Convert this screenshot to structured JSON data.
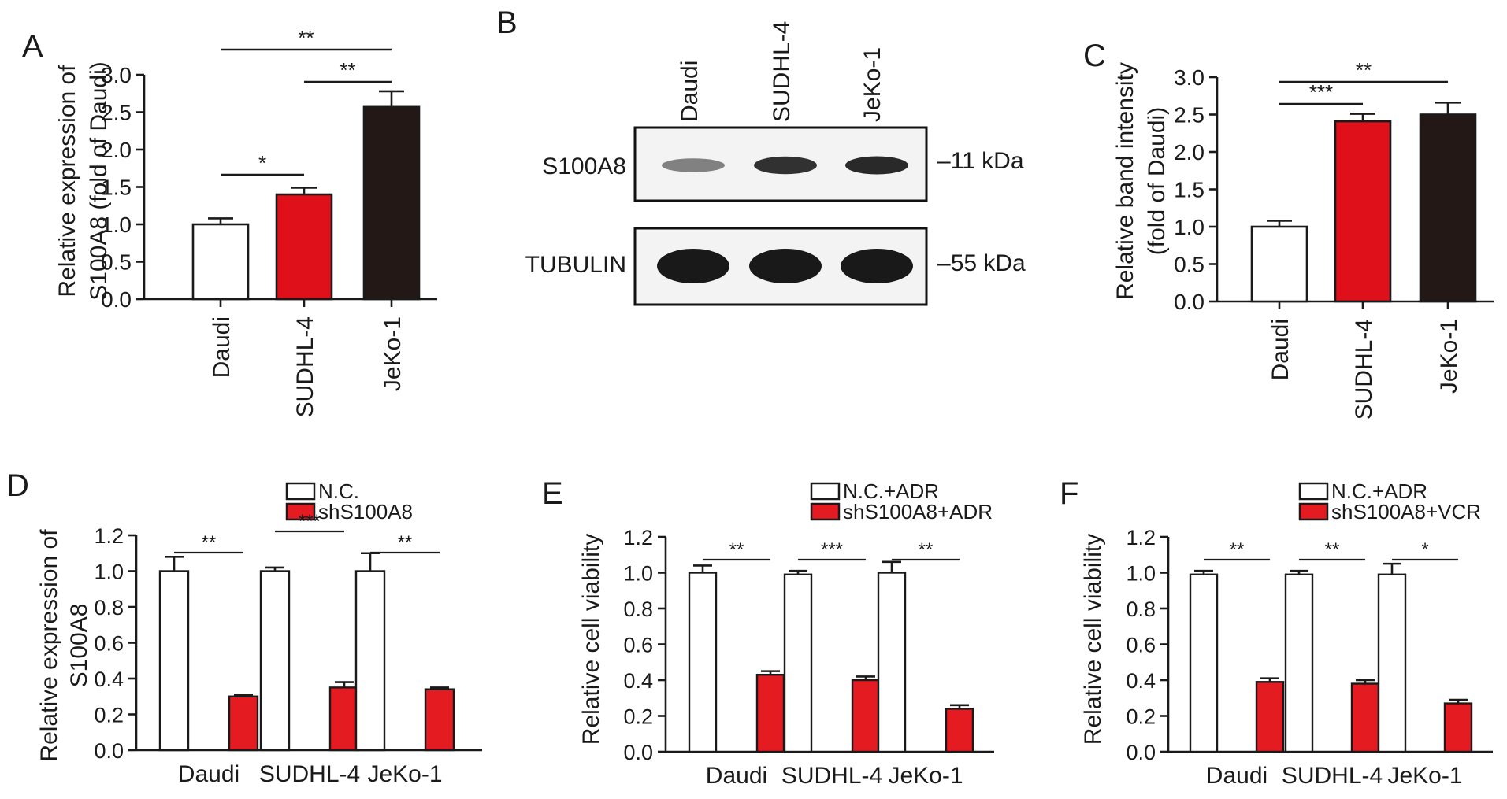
{
  "panel_letters": {
    "a": "A",
    "b": "B",
    "c": "C",
    "d": "D",
    "e": "E",
    "f": "F"
  },
  "colors": {
    "white": "#ffffff",
    "red": "#e0101a",
    "black": "#231815",
    "shred": "#e51b22",
    "axis": "#1a1a1a"
  },
  "blot": {
    "lanes": [
      "Daudi",
      "SUDHL-4",
      "JeKo-1"
    ],
    "row_labels": [
      "S100A8",
      "TUBULIN"
    ],
    "markers": [
      "11 kDa",
      "55 kDa"
    ],
    "band_intensity": [
      [
        0.35,
        0.85,
        0.9
      ],
      [
        1.0,
        1.0,
        1.0
      ]
    ]
  },
  "chart_data": [
    {
      "panel": "A",
      "type": "bar",
      "categories": [
        "Daudi",
        "SUDHL-4",
        "JeKo-1"
      ],
      "values": [
        1.0,
        1.4,
        2.57
      ],
      "errors": [
        0.08,
        0.09,
        0.21
      ],
      "colors": [
        "#ffffff",
        "#e0101a",
        "#231815"
      ],
      "ylabel": [
        "Relative expression of",
        "S100A8 (fold of Daudi)"
      ],
      "ylim": [
        0,
        3.0
      ],
      "yticks": [
        "0.0",
        "0.5",
        "1.0",
        "1.5",
        "2.0",
        "2.5",
        "3.0"
      ],
      "significance": [
        {
          "from": 0,
          "to": 1,
          "label": "*"
        },
        {
          "from": 1,
          "to": 2,
          "label": "**"
        },
        {
          "from": 0,
          "to": 2,
          "label": "**"
        }
      ]
    },
    {
      "panel": "C",
      "type": "bar",
      "categories": [
        "Daudi",
        "SUDHL-4",
        "JeKo-1"
      ],
      "values": [
        1.0,
        2.41,
        2.5
      ],
      "errors": [
        0.08,
        0.1,
        0.16
      ],
      "colors": [
        "#ffffff",
        "#e0101a",
        "#231815"
      ],
      "ylabel": [
        "Relative band intensity",
        "(fold of Daudi)"
      ],
      "ylim": [
        0,
        3.0
      ],
      "yticks": [
        "0.0",
        "0.5",
        "1.0",
        "1.5",
        "2.0",
        "2.5",
        "3.0"
      ],
      "significance": [
        {
          "from": 0,
          "to": 1,
          "label": "***"
        },
        {
          "from": 0,
          "to": 2,
          "label": "**"
        }
      ]
    },
    {
      "panel": "D",
      "type": "bar",
      "categories": [
        "Daudi",
        "SUDHL-4",
        "JeKo-1"
      ],
      "series": [
        {
          "name": "N.C.",
          "values": [
            1.0,
            1.0,
            1.0
          ],
          "errors": [
            0.08,
            0.02,
            0.1
          ]
        },
        {
          "name": "shS100A8",
          "values": [
            0.3,
            0.35,
            0.34
          ],
          "errors": [
            0.01,
            0.03,
            0.01
          ]
        }
      ],
      "ylabel": [
        "Relative expression of",
        "S100A8"
      ],
      "ylim": [
        0,
        1.2
      ],
      "yticks": [
        "0.0",
        "0.2",
        "0.4",
        "0.6",
        "0.8",
        "1.0",
        "1.2"
      ],
      "significance": [
        "**",
        "***",
        "**"
      ]
    },
    {
      "panel": "E",
      "type": "bar",
      "categories": [
        "Daudi",
        "SUDHL-4",
        "JeKo-1"
      ],
      "series": [
        {
          "name": "N.C.+ADR",
          "values": [
            1.0,
            0.99,
            1.0
          ],
          "errors": [
            0.04,
            0.02,
            0.06
          ]
        },
        {
          "name": "shS100A8+ADR",
          "values": [
            0.43,
            0.4,
            0.24
          ],
          "errors": [
            0.02,
            0.02,
            0.02
          ]
        }
      ],
      "ylabel": [
        "Relative cell viability"
      ],
      "ylim": [
        0,
        1.2
      ],
      "yticks": [
        "0.0",
        "0.2",
        "0.4",
        "0.6",
        "0.8",
        "1.0",
        "1.2"
      ],
      "significance": [
        "**",
        "***",
        "**"
      ]
    },
    {
      "panel": "F",
      "type": "bar",
      "categories": [
        "Daudi",
        "SUDHL-4",
        "JeKo-1"
      ],
      "series": [
        {
          "name": "N.C.+ADR",
          "values": [
            0.99,
            0.99,
            0.99
          ],
          "errors": [
            0.02,
            0.02,
            0.06
          ]
        },
        {
          "name": "shS100A8+VCR",
          "values": [
            0.39,
            0.38,
            0.27
          ],
          "errors": [
            0.02,
            0.02,
            0.02
          ]
        }
      ],
      "ylabel": [
        "Relative cell viability"
      ],
      "ylim": [
        0,
        1.2
      ],
      "yticks": [
        "0.0",
        "0.2",
        "0.4",
        "0.6",
        "0.8",
        "1.0",
        "1.2"
      ],
      "significance": [
        "**",
        "**",
        "*"
      ]
    }
  ]
}
